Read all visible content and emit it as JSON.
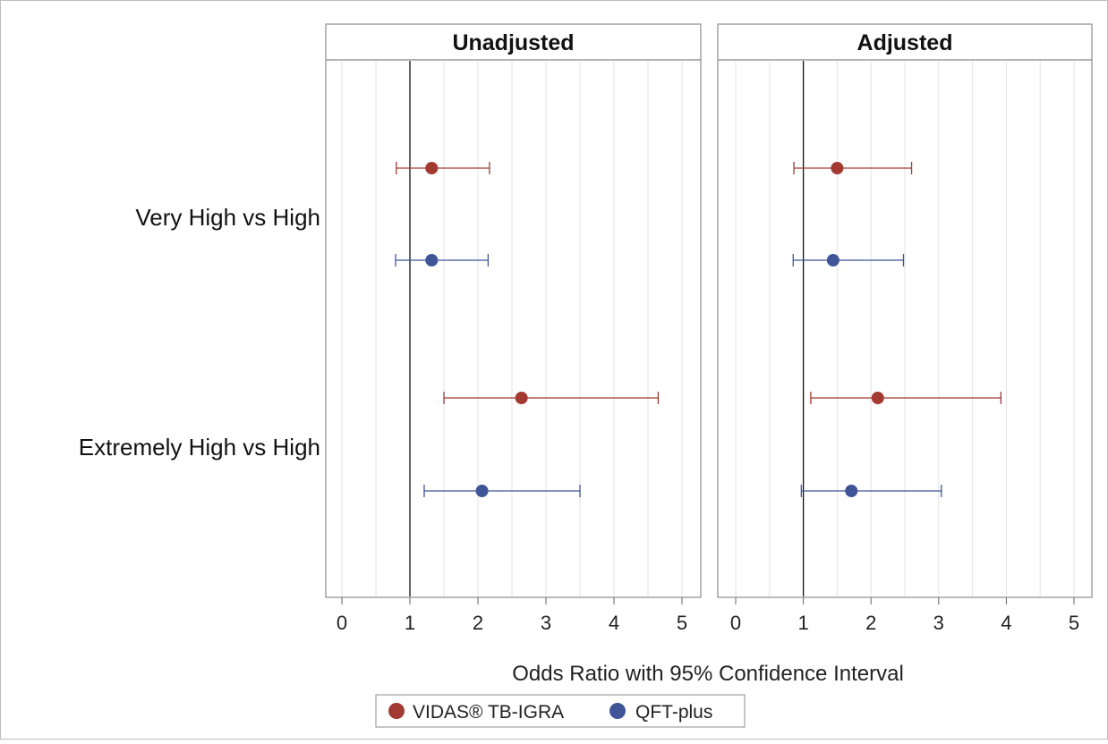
{
  "chart_data": {
    "type": "scatter",
    "subtype": "forest-plot-with-error-bars",
    "xlabel": "Odds Ratio with 95% Confidence Interval",
    "xlim": [
      0,
      5
    ],
    "x_ticks": [
      "0",
      "1",
      "2",
      "3",
      "4",
      "5"
    ],
    "reference_line_x": 1,
    "grid": "vertical",
    "legend_placement": "bottom",
    "categories": [
      "Very High vs High",
      "Extremely High vs High"
    ],
    "series_colors": {
      "VIDAS® TB-IGRA": "#a23a32",
      "QFT-plus": "#3f5597"
    },
    "legend": [
      "VIDAS® TB-IGRA",
      "QFT-plus"
    ],
    "panels": [
      {
        "title": "Unadjusted",
        "series": [
          {
            "name": "VIDAS® TB-IGRA",
            "estimates": [
              1.32,
              2.64
            ],
            "lower": [
              0.8,
              1.5
            ],
            "upper": [
              2.17,
              4.65
            ]
          },
          {
            "name": "QFT-plus",
            "estimates": [
              1.32,
              2.06
            ],
            "lower": [
              0.79,
              1.21
            ],
            "upper": [
              2.15,
              3.5
            ]
          }
        ]
      },
      {
        "title": "Adjusted",
        "series": [
          {
            "name": "VIDAS® TB-IGRA",
            "estimates": [
              1.5,
              2.1
            ],
            "lower": [
              0.86,
              1.11
            ],
            "upper": [
              2.6,
              3.92
            ]
          },
          {
            "name": "QFT-plus",
            "estimates": [
              1.44,
              1.71
            ],
            "lower": [
              0.85,
              0.97
            ],
            "upper": [
              2.48,
              3.04
            ]
          }
        ]
      }
    ]
  }
}
